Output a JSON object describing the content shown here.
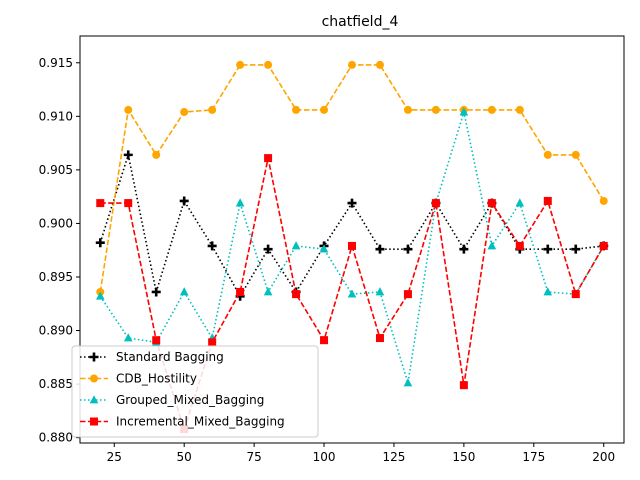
{
  "chart_data": {
    "type": "line",
    "title": "chatfield_4",
    "xlabel": "",
    "ylabel": "",
    "xlim": [
      12.75,
      207.25
    ],
    "ylim": [
      0.8795,
      0.9175
    ],
    "xticks": [
      25,
      50,
      75,
      100,
      125,
      150,
      175,
      200
    ],
    "yticks": [
      0.88,
      0.885,
      0.89,
      0.895,
      0.9,
      0.905,
      0.91,
      0.915
    ],
    "ytick_labels": [
      "0.880",
      "0.885",
      "0.890",
      "0.895",
      "0.900",
      "0.905",
      "0.910",
      "0.915"
    ],
    "grid": false,
    "legend_position": "lower-left",
    "x": [
      20,
      30,
      40,
      50,
      60,
      70,
      80,
      90,
      100,
      110,
      120,
      130,
      140,
      150,
      160,
      170,
      180,
      190,
      200
    ],
    "series": [
      {
        "name": "Standard Bagging",
        "color": "#000000",
        "linestyle": "dotted",
        "marker": "plus",
        "values": [
          0.8982,
          0.9064,
          0.8936,
          0.9021,
          0.8979,
          0.8932,
          0.8976,
          0.8936,
          0.8979,
          0.9019,
          0.8976,
          0.8976,
          0.9019,
          0.8976,
          0.9019,
          0.8976,
          0.8976,
          0.8976,
          0.8979
        ]
      },
      {
        "name": "CDB_Hostility",
        "color": "#ffa500",
        "linestyle": "dashed",
        "marker": "circle",
        "values": [
          0.8936,
          0.9106,
          0.9064,
          0.9104,
          0.9106,
          0.9148,
          0.9148,
          0.9106,
          0.9106,
          0.9148,
          0.9148,
          0.9106,
          0.9106,
          0.9106,
          0.9106,
          0.9106,
          0.9064,
          0.9064,
          0.9021
        ]
      },
      {
        "name": "Grouped_Mixed_Bagging",
        "color": "#00bfbf",
        "linestyle": "dotted",
        "marker": "triangle",
        "values": [
          0.8932,
          0.8893,
          0.8889,
          0.8936,
          0.8893,
          0.9019,
          0.8936,
          0.8979,
          0.8976,
          0.8934,
          0.8936,
          0.8851,
          0.9019,
          0.9104,
          0.8979,
          0.9019,
          0.8936,
          0.8934,
          0.8979
        ]
      },
      {
        "name": "Incremental_Mixed_Bagging",
        "color": "#ff0000",
        "linestyle": "dashed",
        "marker": "square",
        "values": [
          0.9019,
          0.9019,
          0.8891,
          0.8808,
          0.8889,
          0.8936,
          0.9061,
          0.8934,
          0.8891,
          0.8979,
          0.8893,
          0.8934,
          0.9019,
          0.8849,
          0.9019,
          0.8979,
          0.9021,
          0.8934,
          0.8979
        ]
      }
    ]
  }
}
